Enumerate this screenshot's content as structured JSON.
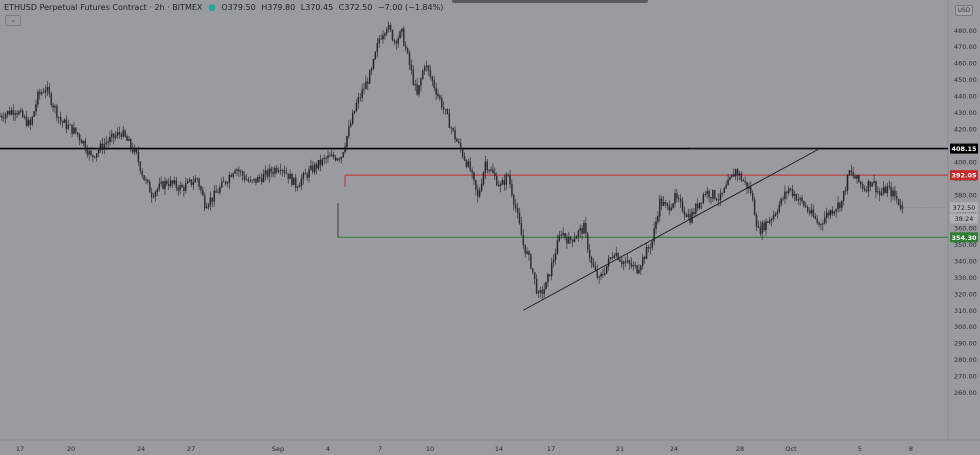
{
  "header": {
    "symbol": "ETHUSD Perpetual Futures Contract · 2h · BITMEX",
    "status_dot": "●",
    "o": "O379.50",
    "h": "H379.80",
    "l": "L370.45",
    "c": "C372.50",
    "change": "−7.00 (−1.84%)",
    "collapse_icon": "chevron-down-icon",
    "collapse_glyph": "⌄"
  },
  "currency": "USD",
  "colors": {
    "background": "#9a9ba1",
    "candle": "#1f2025",
    "resistance": "#c62828",
    "support": "#2e7d32",
    "level": "#000000"
  },
  "chart_data": {
    "type": "candlestick",
    "title": "",
    "xlabel": "",
    "ylabel": "",
    "ylim": [
      250,
      490
    ],
    "y_ticks": [
      260,
      270,
      280,
      290,
      300,
      310,
      320,
      330,
      340,
      350,
      360,
      370,
      380,
      390,
      400,
      410,
      420,
      430,
      440,
      450,
      460,
      470,
      480
    ],
    "x_ticks": [
      "17",
      "20",
      "24",
      "27",
      "Sep",
      "4",
      "7",
      "10",
      "14",
      "17",
      "21",
      "24",
      "28",
      "Oct",
      "5",
      "8"
    ],
    "x_domain": [
      0,
      125
    ],
    "price_path": [
      [
        0,
        428
      ],
      [
        2,
        432
      ],
      [
        4,
        422
      ],
      [
        5,
        440
      ],
      [
        6,
        445
      ],
      [
        8,
        425
      ],
      [
        10,
        418
      ],
      [
        11,
        412
      ],
      [
        12,
        403
      ],
      [
        14,
        412
      ],
      [
        16,
        418
      ],
      [
        18,
        404
      ],
      [
        19,
        390
      ],
      [
        20,
        381
      ],
      [
        22,
        388
      ],
      [
        24,
        384
      ],
      [
        26,
        390
      ],
      [
        27,
        375
      ],
      [
        28,
        378
      ],
      [
        30,
        390
      ],
      [
        31,
        397
      ],
      [
        33,
        387
      ],
      [
        35,
        392
      ],
      [
        37,
        398
      ],
      [
        39,
        386
      ],
      [
        41,
        395
      ],
      [
        43,
        402
      ],
      [
        45,
        404
      ],
      [
        47,
        435
      ],
      [
        49,
        455
      ],
      [
        50,
        475
      ],
      [
        51,
        483
      ],
      [
        52,
        474
      ],
      [
        53,
        478
      ],
      [
        55,
        440
      ],
      [
        56,
        460
      ],
      [
        58,
        438
      ],
      [
        60,
        415
      ],
      [
        62,
        395
      ],
      [
        63,
        378
      ],
      [
        64,
        400
      ],
      [
        66,
        385
      ],
      [
        67,
        392
      ],
      [
        68,
        372
      ],
      [
        69,
        350
      ],
      [
        70,
        338
      ],
      [
        71,
        318
      ],
      [
        72,
        325
      ],
      [
        74,
        358
      ],
      [
        75,
        352
      ],
      [
        77,
        360
      ],
      [
        78,
        338
      ],
      [
        79,
        328
      ],
      [
        81,
        346
      ],
      [
        82,
        340
      ],
      [
        84,
        335
      ],
      [
        86,
        352
      ],
      [
        87,
        376
      ],
      [
        88,
        372
      ],
      [
        89,
        378
      ],
      [
        91,
        366
      ],
      [
        93,
        382
      ],
      [
        95,
        378
      ],
      [
        97,
        395
      ],
      [
        99,
        382
      ],
      [
        100,
        358
      ],
      [
        102,
        368
      ],
      [
        104,
        384
      ],
      [
        106,
        374
      ],
      [
        108,
        362
      ],
      [
        109,
        368
      ],
      [
        111,
        376
      ],
      [
        112,
        394
      ],
      [
        114,
        384
      ],
      [
        115,
        389
      ],
      [
        116,
        380
      ],
      [
        117,
        384
      ],
      [
        118,
        379
      ],
      [
        119,
        372
      ]
    ],
    "level_lines": [
      {
        "price": 408.15,
        "label": "408.15",
        "color": "#000000"
      },
      {
        "price": 392.05,
        "label": "392.05",
        "color": "#c62828"
      },
      {
        "price": 354.3,
        "label": "354.30",
        "color": "#2e7d32"
      }
    ],
    "trendline": {
      "from": [
        69,
        310
      ],
      "to": [
        108,
        408
      ]
    },
    "current_price": {
      "value": "372.50",
      "countdown": "38:24"
    }
  }
}
